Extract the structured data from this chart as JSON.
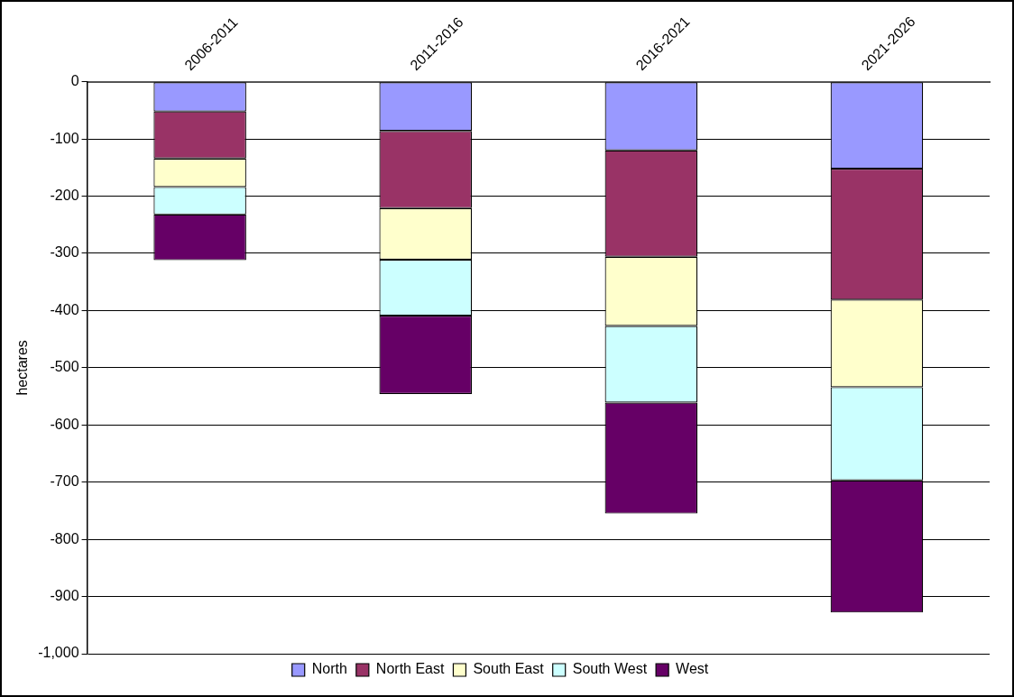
{
  "chart_data": {
    "type": "bar",
    "stacked": true,
    "ylabel": "hectares",
    "categories": [
      "2006-2011",
      "2011-2016",
      "2016-2021",
      "2021-2026"
    ],
    "series": [
      {
        "name": "North",
        "color": "#9999ff",
        "values": [
          -52,
          -86,
          -120,
          -152
        ]
      },
      {
        "name": "North East",
        "color": "#993366",
        "values": [
          -82,
          -135,
          -186,
          -229
        ]
      },
      {
        "name": "South East",
        "color": "#ffffcc",
        "values": [
          -50,
          -90,
          -121,
          -153
        ]
      },
      {
        "name": "South West",
        "color": "#ccffff",
        "values": [
          -48,
          -98,
          -134,
          -163
        ]
      },
      {
        "name": "West",
        "color": "#660066",
        "values": [
          -80,
          -137,
          -194,
          -231
        ]
      }
    ],
    "ylim": [
      -1000,
      0
    ],
    "yticks": [
      0,
      -100,
      -200,
      -300,
      -400,
      -500,
      -600,
      -700,
      -800,
      -900,
      {
        "value": -1000,
        "label": "-1,000"
      }
    ],
    "grid": "y",
    "legend": "bottom"
  }
}
